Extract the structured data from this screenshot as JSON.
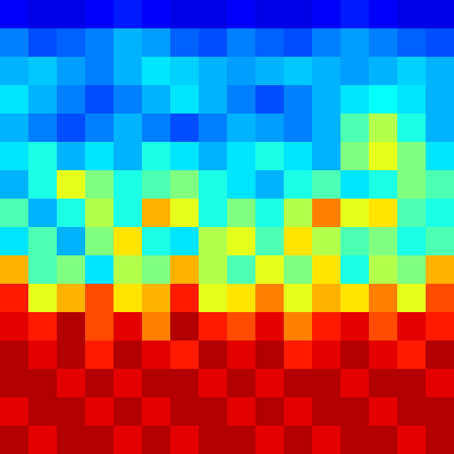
{
  "chart_data": {
    "type": "heatmap",
    "tick_labels": false,
    "zlim": [
      0,
      1
    ],
    "cells": [
      [
        0.12,
        0.1,
        0.1,
        0.12,
        0.15,
        0.12,
        0.1,
        0.1,
        0.12,
        0.1,
        0.1,
        0.12,
        0.15,
        0.12,
        0.1,
        0.1
      ],
      [
        0.25,
        0.2,
        0.22,
        0.25,
        0.3,
        0.28,
        0.22,
        0.2,
        0.25,
        0.22,
        0.2,
        0.25,
        0.28,
        0.25,
        0.22,
        0.2
      ],
      [
        0.3,
        0.32,
        0.28,
        0.25,
        0.3,
        0.35,
        0.33,
        0.3,
        0.28,
        0.3,
        0.32,
        0.3,
        0.28,
        0.3,
        0.33,
        0.3
      ],
      [
        0.35,
        0.3,
        0.25,
        0.2,
        0.25,
        0.3,
        0.35,
        0.3,
        0.25,
        0.2,
        0.25,
        0.3,
        0.35,
        0.38,
        0.35,
        0.3
      ],
      [
        0.3,
        0.25,
        0.2,
        0.25,
        0.3,
        0.25,
        0.2,
        0.25,
        0.3,
        0.28,
        0.25,
        0.3,
        0.45,
        0.55,
        0.4,
        0.3
      ],
      [
        0.35,
        0.4,
        0.3,
        0.35,
        0.3,
        0.4,
        0.35,
        0.3,
        0.35,
        0.4,
        0.35,
        0.3,
        0.5,
        0.6,
        0.5,
        0.35
      ],
      [
        0.3,
        0.4,
        0.6,
        0.5,
        0.4,
        0.45,
        0.5,
        0.4,
        0.35,
        0.3,
        0.4,
        0.45,
        0.35,
        0.4,
        0.5,
        0.45
      ],
      [
        0.45,
        0.3,
        0.4,
        0.55,
        0.4,
        0.7,
        0.6,
        0.4,
        0.5,
        0.4,
        0.55,
        0.75,
        0.6,
        0.65,
        0.45,
        0.4
      ],
      [
        0.35,
        0.45,
        0.3,
        0.5,
        0.65,
        0.4,
        0.35,
        0.55,
        0.6,
        0.45,
        0.65,
        0.55,
        0.45,
        0.5,
        0.4,
        0.45
      ],
      [
        0.7,
        0.45,
        0.5,
        0.35,
        0.55,
        0.5,
        0.7,
        0.55,
        0.45,
        0.6,
        0.5,
        0.65,
        0.4,
        0.55,
        0.5,
        0.7
      ],
      [
        0.85,
        0.6,
        0.7,
        0.8,
        0.65,
        0.7,
        0.85,
        0.6,
        0.65,
        0.75,
        0.6,
        0.7,
        0.65,
        0.75,
        0.6,
        0.8
      ],
      [
        0.9,
        0.85,
        0.95,
        0.8,
        0.9,
        0.75,
        0.95,
        0.85,
        0.8,
        0.9,
        0.75,
        0.85,
        0.9,
        0.8,
        0.9,
        0.85
      ],
      [
        0.95,
        0.9,
        0.95,
        0.85,
        0.95,
        0.9,
        0.85,
        0.95,
        0.9,
        0.95,
        0.85,
        0.9,
        0.95,
        0.9,
        0.85,
        0.95
      ],
      [
        0.95,
        0.95,
        0.9,
        0.95,
        0.9,
        0.95,
        0.95,
        0.9,
        0.95,
        0.9,
        0.95,
        0.95,
        0.9,
        0.95,
        0.95,
        0.9
      ],
      [
        0.9,
        0.95,
        0.95,
        0.9,
        0.95,
        0.9,
        0.95,
        0.95,
        0.9,
        0.95,
        0.9,
        0.95,
        0.95,
        0.9,
        0.95,
        0.95
      ],
      [
        0.95,
        0.9,
        0.95,
        0.95,
        0.9,
        0.95,
        0.9,
        0.95,
        0.95,
        0.9,
        0.95,
        0.9,
        0.95,
        0.95,
        0.9,
        0.95
      ]
    ]
  }
}
